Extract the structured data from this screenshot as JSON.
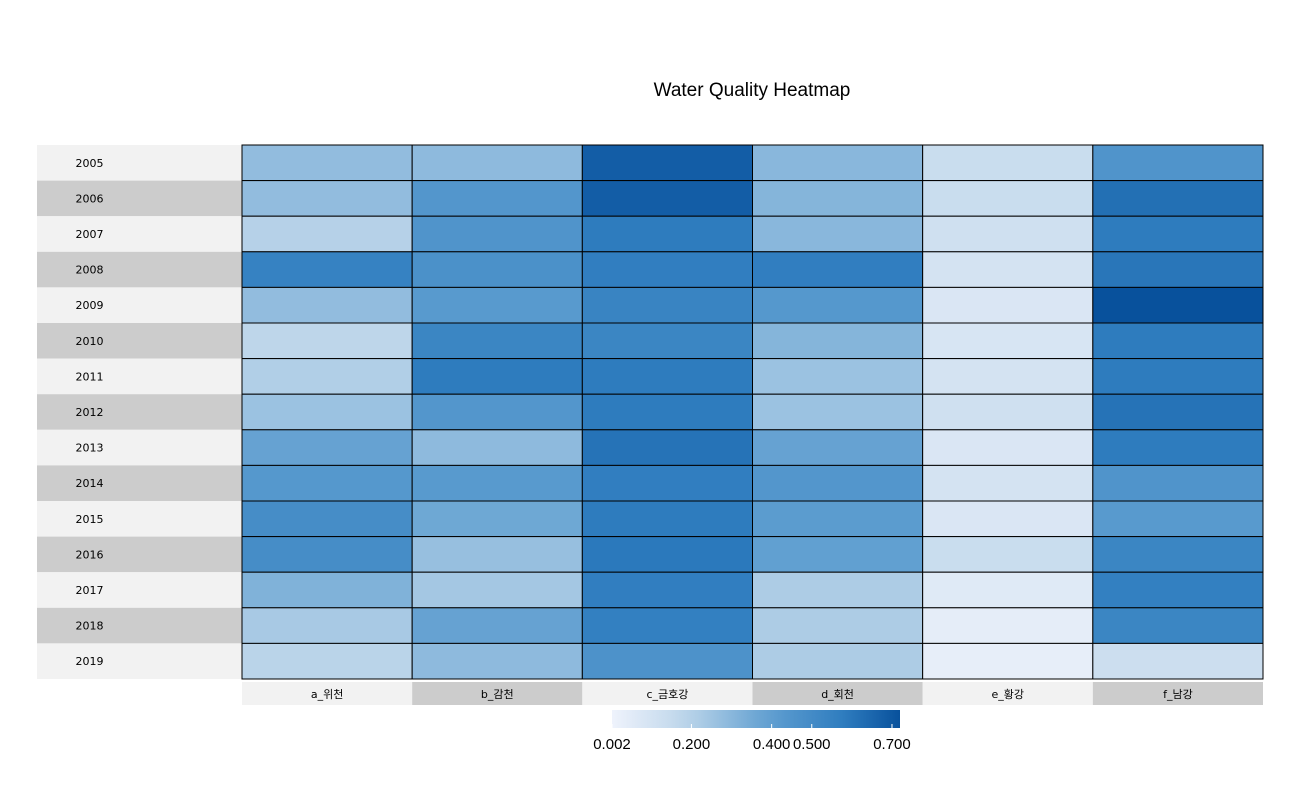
{
  "chart_data": {
    "type": "heatmap",
    "title": "Water Quality Heatmap",
    "rows": [
      "2005",
      "2006",
      "2007",
      "2008",
      "2009",
      "2010",
      "2011",
      "2012",
      "2013",
      "2014",
      "2015",
      "2016",
      "2017",
      "2018",
      "2019"
    ],
    "columns": [
      "a_위천",
      "b_감천",
      "c_금호강",
      "d_회천",
      "e_황강",
      "f_남강"
    ],
    "values": [
      [
        0.28,
        0.29,
        0.68,
        0.3,
        0.14,
        0.45
      ],
      [
        0.28,
        0.44,
        0.68,
        0.31,
        0.14,
        0.62
      ],
      [
        0.2,
        0.45,
        0.58,
        0.3,
        0.12,
        0.58
      ],
      [
        0.55,
        0.47,
        0.57,
        0.57,
        0.1,
        0.6
      ],
      [
        0.28,
        0.42,
        0.54,
        0.43,
        0.08,
        0.72
      ],
      [
        0.18,
        0.53,
        0.53,
        0.31,
        0.09,
        0.58
      ],
      [
        0.21,
        0.58,
        0.58,
        0.26,
        0.1,
        0.58
      ],
      [
        0.26,
        0.44,
        0.58,
        0.26,
        0.12,
        0.61
      ],
      [
        0.38,
        0.29,
        0.61,
        0.38,
        0.08,
        0.58
      ],
      [
        0.43,
        0.42,
        0.57,
        0.44,
        0.1,
        0.45
      ],
      [
        0.49,
        0.36,
        0.58,
        0.41,
        0.08,
        0.42
      ],
      [
        0.49,
        0.27,
        0.59,
        0.39,
        0.14,
        0.53
      ],
      [
        0.32,
        0.24,
        0.57,
        0.22,
        0.06,
        0.56
      ],
      [
        0.23,
        0.38,
        0.56,
        0.22,
        0.04,
        0.53
      ],
      [
        0.19,
        0.29,
        0.46,
        0.22,
        0.03,
        0.13
      ]
    ],
    "colorbar": {
      "ticks": [
        "0.002",
        "0.200",
        "0.400",
        "0.500",
        "0.700"
      ],
      "tick_values": [
        0.002,
        0.2,
        0.4,
        0.5,
        0.7
      ],
      "range": [
        0.002,
        0.72
      ]
    },
    "colors": {
      "low": "#eef3fc",
      "mid": "#2f7dbf",
      "high": "#08519c",
      "row_label_bg_light": "#f2f2f2",
      "row_label_bg_dark": "#cccccc",
      "cell_border": "#000000"
    },
    "grid": true
  }
}
